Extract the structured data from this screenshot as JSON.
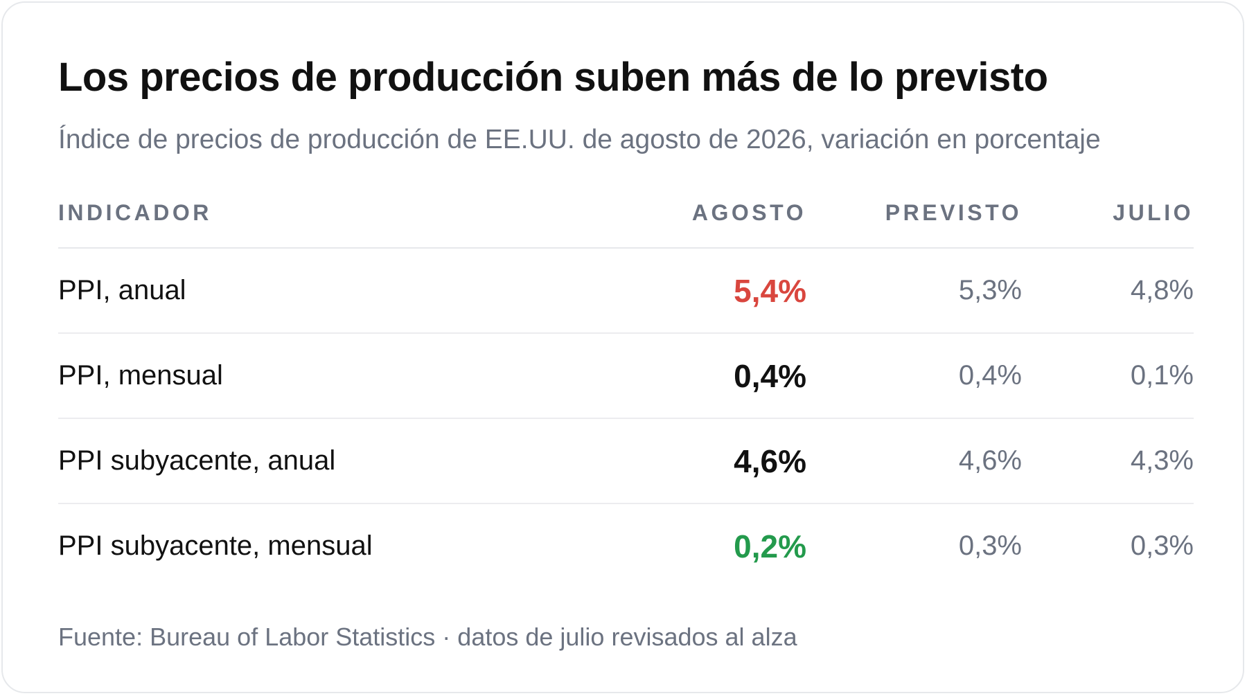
{
  "title": "Los precios de producción suben más de lo previsto",
  "subtitle": "Índice de precios de producción de EE.UU. de agosto de 2026, variación en porcentaje",
  "colors": {
    "above_forecast": "#d9463e",
    "below_forecast": "#239a4c",
    "text": "#111111",
    "muted": "#6b7280"
  },
  "table": {
    "headers": {
      "indicator": "INDICADOR",
      "august": "AGOSTO",
      "forecast": "PREVISTO",
      "july": "JULIO"
    },
    "rows": [
      {
        "indicator": "PPI, anual",
        "august": "5,4%",
        "forecast": "5,3%",
        "july": "4,8%",
        "august_status": "up"
      },
      {
        "indicator": "PPI, mensual",
        "august": "0,4%",
        "forecast": "0,4%",
        "july": "0,1%",
        "august_status": "neutral"
      },
      {
        "indicator": "PPI subyacente, anual",
        "august": "4,6%",
        "forecast": "4,6%",
        "july": "4,3%",
        "august_status": "neutral"
      },
      {
        "indicator": "PPI subyacente, mensual",
        "august": "0,2%",
        "forecast": "0,3%",
        "july": "0,3%",
        "august_status": "down"
      }
    ]
  },
  "source": "Fuente: Bureau of Labor Statistics · datos de julio revisados al alza",
  "chart_data": {
    "type": "table",
    "title": "Los precios de producción suben más de lo previsto",
    "subtitle": "Índice de precios de producción de EE.UU. de agosto de 2026, variación en porcentaje",
    "columns": [
      "INDICADOR",
      "AGOSTO",
      "PREVISTO",
      "JULIO"
    ],
    "categories": [
      "PPI, anual",
      "PPI, mensual",
      "PPI subyacente, anual",
      "PPI subyacente, mensual"
    ],
    "series": [
      {
        "name": "AGOSTO",
        "values": [
          5.4,
          0.4,
          4.6,
          0.2
        ]
      },
      {
        "name": "PREVISTO",
        "values": [
          5.3,
          0.4,
          4.6,
          0.3
        ]
      },
      {
        "name": "JULIO",
        "values": [
          4.8,
          0.1,
          4.3,
          0.3
        ]
      }
    ]
  }
}
